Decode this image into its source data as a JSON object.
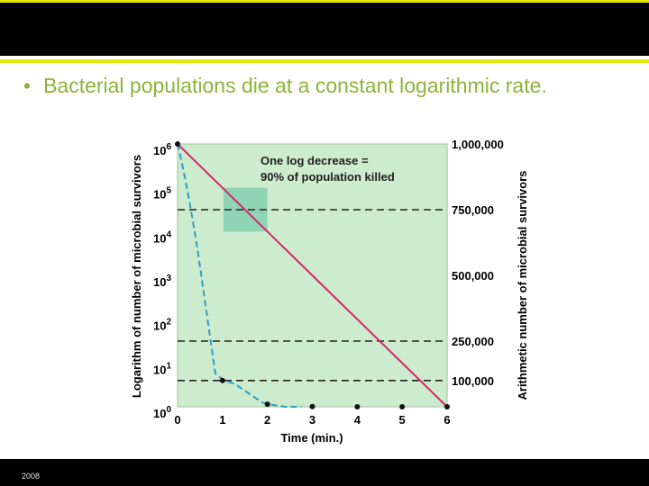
{
  "slide": {
    "bullet": "•",
    "headline": "Bacterial populations die at a constant logarithmic rate.",
    "footer": "2008"
  },
  "colors": {
    "top_bar": "#000000",
    "accent": "#e6e60a",
    "headline": "#8db33a",
    "plot_background": "#cdeccd",
    "highlight_box": "#8fd4b4",
    "log_line": "#d4286e",
    "arithmetic_curve": "#2a9fc9",
    "reference_lines": "#222222"
  },
  "chart_data": {
    "type": "line",
    "xlabel": "Time (min.)",
    "ylabel_left": "Logarithm of number of microbial survivors",
    "ylabel_right": "Arithmetic number of microbial survivors",
    "x_ticks": [
      "0",
      "1",
      "2",
      "3",
      "4",
      "5",
      "6"
    ],
    "xlim": [
      0,
      6
    ],
    "y_log_ticks": [
      {
        "base": "10",
        "exp": "6"
      },
      {
        "base": "10",
        "exp": "5"
      },
      {
        "base": "10",
        "exp": "4"
      },
      {
        "base": "10",
        "exp": "3"
      },
      {
        "base": "10",
        "exp": "2"
      },
      {
        "base": "10",
        "exp": "1"
      },
      {
        "base": "10",
        "exp": "0"
      }
    ],
    "ylim_log_exponent": [
      0,
      6
    ],
    "y_right_ticks": [
      {
        "label": "1,000,000",
        "value": 1000000
      },
      {
        "label": "750,000",
        "value": 750000
      },
      {
        "label": "500,000",
        "value": 500000
      },
      {
        "label": "250,000",
        "value": 250000
      },
      {
        "label": "100,000",
        "value": 100000
      }
    ],
    "reference_lines": [
      750000,
      250000,
      100000
    ],
    "series": [
      {
        "style": "solid",
        "x": [
          0,
          6
        ],
        "log10_y": [
          6,
          0
        ]
      },
      {
        "style": "dashed-with-points",
        "x": [
          0,
          1,
          2,
          3,
          4,
          5,
          6
        ],
        "y": [
          1000000,
          100000,
          10000,
          1000,
          100,
          10,
          1
        ]
      }
    ],
    "annotation": {
      "line1": "One log decrease =",
      "line2": "90% of population killed",
      "x_range": [
        1,
        2
      ],
      "log10_y_range": [
        4,
        5
      ]
    },
    "grid": false
  }
}
